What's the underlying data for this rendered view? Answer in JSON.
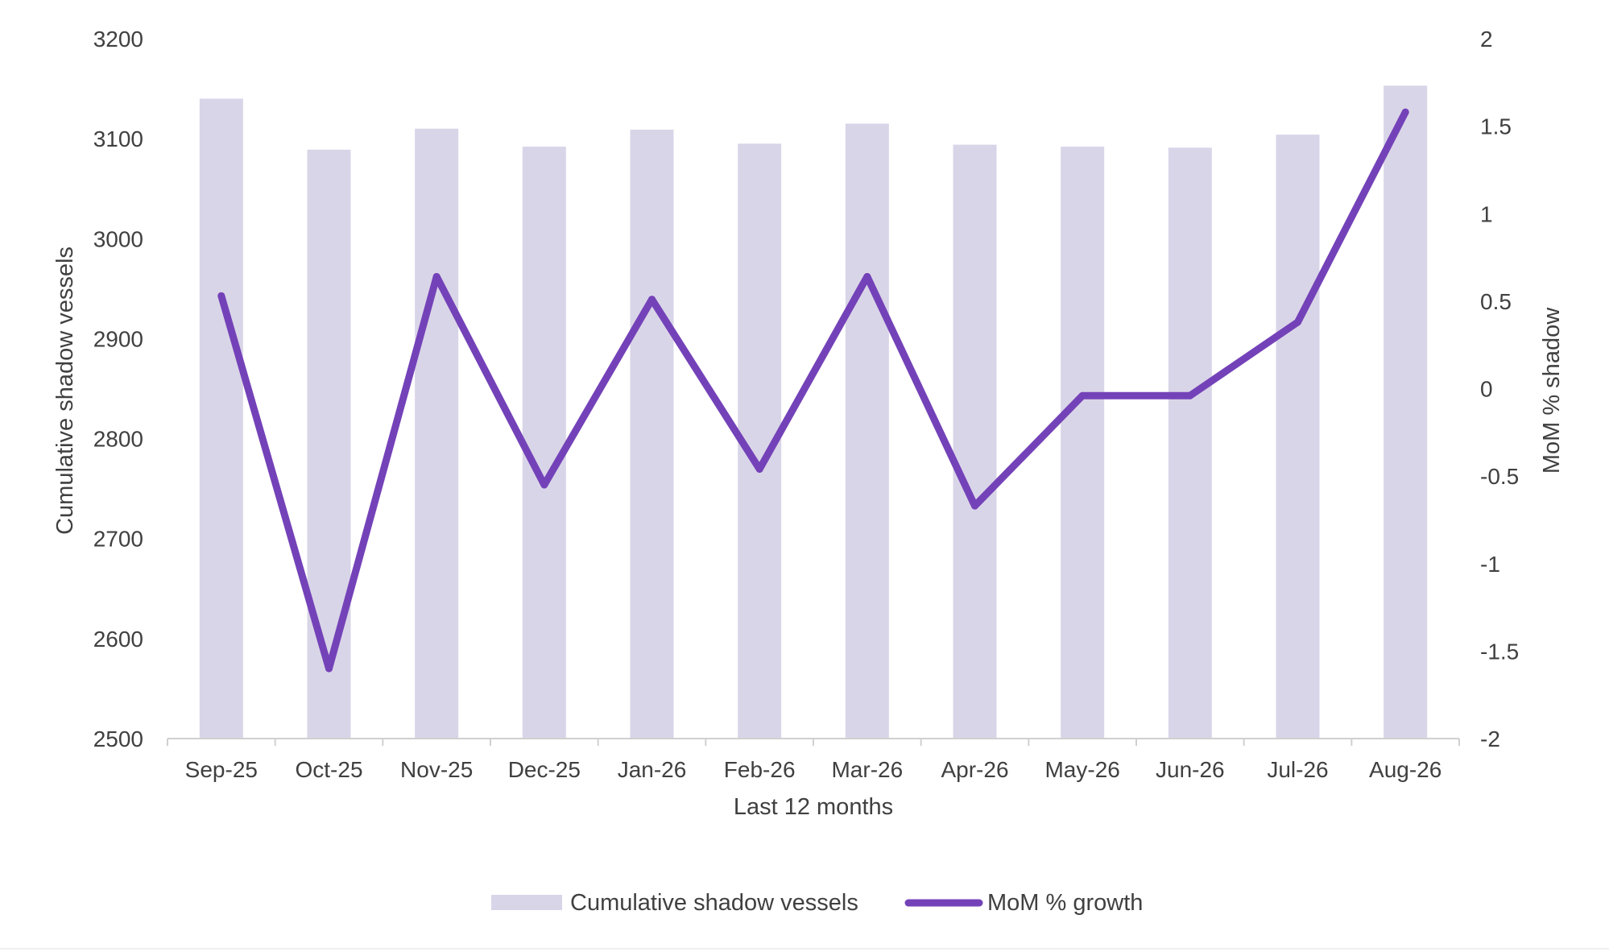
{
  "chart_data": {
    "type": "bar+line",
    "title": "",
    "xlabel": "Last 12 months",
    "ylabel_left": "Cumulative shadow vessels",
    "ylabel_right": "MoM % shadow",
    "categories": [
      "Sep-25",
      "Oct-25",
      "Nov-25",
      "Dec-25",
      "Jan-26",
      "Feb-26",
      "Mar-26",
      "Apr-26",
      "May-26",
      "Jun-26",
      "Jul-26",
      "Aug-26"
    ],
    "ylim_left": [
      2500,
      3200
    ],
    "yticks_left": [
      "2500",
      "2600",
      "2700",
      "2800",
      "2900",
      "3000",
      "3100",
      "3200"
    ],
    "ylim_right": [
      -2,
      2
    ],
    "yticks_right": [
      "-2",
      "-1.5",
      "-1",
      "-0.5",
      "0",
      "0.5",
      "1",
      "1.5",
      "2"
    ],
    "grid": false,
    "legend_position": "bottom",
    "series": [
      {
        "name": "Cumulative shadow vessels",
        "type": "bar",
        "axis": "left",
        "color": "#d9d5e8",
        "values": [
          3140,
          3089,
          3110,
          3092,
          3109,
          3095,
          3115,
          3094,
          3092,
          3091,
          3104,
          3153
        ]
      },
      {
        "name": "MoM % growth",
        "type": "line",
        "axis": "right",
        "color": "#7442b8",
        "values": [
          0.53,
          -1.6,
          0.64,
          -0.55,
          0.51,
          -0.46,
          0.64,
          -0.67,
          -0.04,
          -0.04,
          0.38,
          1.58
        ]
      }
    ]
  }
}
